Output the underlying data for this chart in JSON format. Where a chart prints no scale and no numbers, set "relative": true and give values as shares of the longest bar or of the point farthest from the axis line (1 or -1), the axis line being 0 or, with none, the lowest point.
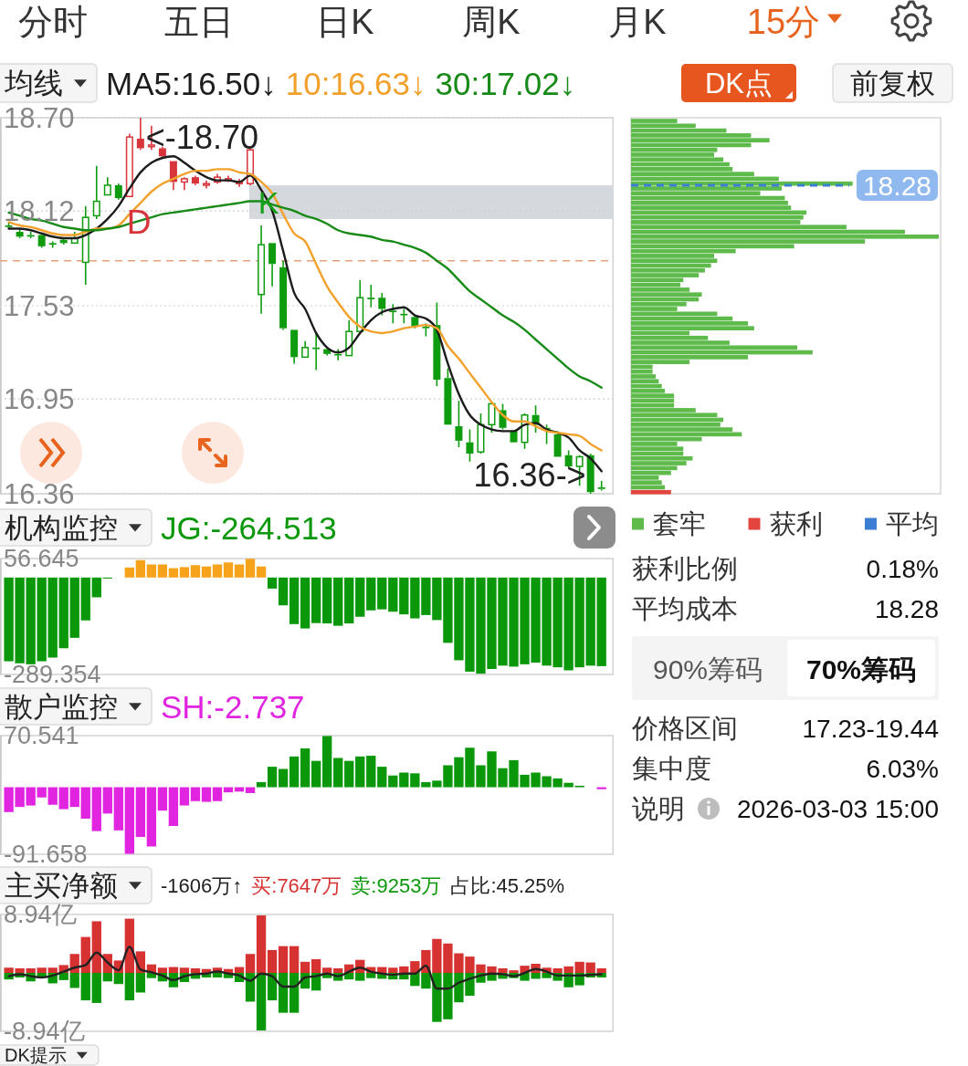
{
  "chart_data": [
    {
      "type": "other",
      "annotations": [
        "分时",
        "五日",
        "日K",
        "周K",
        "月K",
        "15分"
      ]
    },
    {
      "type": "candlestick",
      "legend_title": "均线",
      "legend": "top",
      "tick_labels": "y",
      "grid": "y",
      "categories": [
        null,
        null,
        null,
        null,
        null,
        null,
        null,
        null,
        null,
        null,
        null,
        null,
        null,
        null,
        null,
        null,
        null,
        null,
        null,
        null,
        null,
        null,
        null,
        null,
        null,
        null,
        null,
        null,
        null,
        null,
        null,
        null,
        null,
        null,
        null,
        null,
        null,
        null,
        null,
        null,
        null,
        null,
        null,
        null,
        null,
        null,
        null,
        null,
        null,
        null,
        null,
        null,
        null,
        null,
        null
      ],
      "ohlc": [
        [
          18.03,
          18.05,
          18.01,
          18.02
        ],
        [
          17.99,
          18.01,
          17.95,
          17.96
        ],
        [
          17.97,
          17.99,
          17.95,
          17.96
        ],
        [
          17.97,
          17.98,
          17.89,
          17.9
        ],
        [
          17.92,
          17.93,
          17.89,
          17.91
        ],
        [
          17.94,
          17.95,
          17.91,
          17.92
        ],
        [
          17.92,
          17.99,
          17.92,
          17.95
        ],
        [
          17.8,
          18.15,
          17.66,
          18.08
        ],
        [
          18.09,
          18.4,
          18.07,
          18.18
        ],
        [
          18.22,
          18.33,
          18.22,
          18.28
        ],
        [
          18.28,
          18.29,
          18.19,
          18.2
        ],
        [
          18.21,
          18.6,
          18.21,
          18.58
        ],
        [
          18.57,
          18.7,
          18.5,
          18.51
        ],
        [
          18.52,
          18.65,
          18.5,
          18.53
        ],
        [
          18.51,
          18.52,
          18.45,
          18.46
        ],
        [
          18.43,
          18.43,
          18.25,
          18.3
        ],
        [
          18.3,
          18.33,
          18.25,
          18.32
        ],
        [
          18.33,
          18.34,
          18.28,
          18.29
        ],
        [
          18.28,
          18.31,
          18.26,
          18.29
        ],
        [
          18.3,
          18.35,
          18.29,
          18.33
        ],
        [
          18.31,
          18.34,
          18.3,
          18.32
        ],
        [
          18.29,
          18.32,
          18.27,
          18.3
        ],
        [
          18.29,
          18.51,
          18.28,
          18.5
        ],
        [
          17.6,
          18.03,
          17.48,
          17.91
        ],
        [
          17.92,
          17.92,
          17.65,
          17.79
        ],
        [
          17.77,
          17.81,
          17.38,
          17.39
        ],
        [
          17.38,
          17.38,
          17.17,
          17.21
        ],
        [
          17.21,
          17.31,
          17.21,
          17.27
        ],
        [
          17.27,
          17.36,
          17.13,
          17.26
        ],
        [
          17.26,
          17.27,
          17.22,
          17.23
        ],
        [
          17.23,
          17.26,
          17.19,
          17.22
        ],
        [
          17.22,
          17.44,
          17.22,
          17.37
        ],
        [
          17.37,
          17.69,
          17.37,
          17.58
        ],
        [
          17.58,
          17.66,
          17.52,
          17.57
        ],
        [
          17.58,
          17.61,
          17.47,
          17.51
        ],
        [
          17.5,
          17.54,
          17.42,
          17.49
        ],
        [
          17.48,
          17.51,
          17.42,
          17.47
        ],
        [
          17.46,
          17.47,
          17.39,
          17.4
        ],
        [
          17.4,
          17.42,
          17.34,
          17.39
        ],
        [
          17.41,
          17.55,
          17.03,
          17.07
        ],
        [
          17.08,
          17.14,
          16.79,
          16.79
        ],
        [
          16.78,
          16.94,
          16.65,
          16.69
        ],
        [
          16.68,
          16.76,
          16.56,
          16.61
        ],
        [
          16.62,
          16.86,
          16.61,
          16.79
        ],
        [
          16.79,
          16.93,
          16.74,
          16.92
        ],
        [
          16.88,
          16.92,
          16.76,
          16.77
        ],
        [
          16.75,
          16.75,
          16.68,
          16.68
        ],
        [
          16.68,
          16.86,
          16.64,
          16.85
        ],
        [
          16.85,
          16.91,
          16.74,
          16.79
        ],
        [
          16.77,
          16.79,
          16.67,
          16.76
        ],
        [
          16.73,
          16.75,
          16.59,
          16.59
        ],
        [
          16.6,
          16.63,
          16.52,
          16.53
        ],
        [
          16.53,
          16.6,
          16.41,
          16.59
        ],
        [
          16.6,
          16.61,
          16.36,
          16.37
        ],
        [
          16.4,
          16.44,
          16.38,
          16.39
        ]
      ],
      "colors": [
        "#0e9c0e",
        "#0e9c0e",
        "#0e9c0e",
        "#0e9c0e",
        "#0e9c0e",
        "#0e9c0e",
        "#0e9c0e",
        "#0e9c0e",
        "#0e9c0e",
        "#0e9c0e",
        "#0e9c0e",
        "#d8343c",
        "#d8343c",
        "#d8343c",
        "#d8343c",
        "#d8343c",
        "#d8343c",
        "#d8343c",
        "#d8343c",
        "#d8343c",
        "#d8343c",
        "#d8343c",
        "#d8343c",
        "#0e9c0e",
        "#0e9c0e",
        "#0e9c0e",
        "#0e9c0e",
        "#0e9c0e",
        "#0e9c0e",
        "#0e9c0e",
        "#0e9c0e",
        "#0e9c0e",
        "#0e9c0e",
        "#0e9c0e",
        "#0e9c0e",
        "#0e9c0e",
        "#0e9c0e",
        "#0e9c0e",
        "#0e9c0e",
        "#0e9c0e",
        "#0e9c0e",
        "#0e9c0e",
        "#0e9c0e",
        "#0e9c0e",
        "#0e9c0e",
        "#0e9c0e",
        "#0e9c0e",
        "#0e9c0e",
        "#0e9c0e",
        "#0e9c0e",
        "#0e9c0e",
        "#0e9c0e",
        "#0e9c0e",
        "#0e9c0e",
        "#0e9c0e"
      ],
      "series": [
        {
          "name": "MA5:16.50↓",
          "type": "line",
          "color": "#1c1c1c",
          "values": [
            18.01,
            18.01,
            18.0,
            17.98,
            17.96,
            17.95,
            17.95,
            17.97,
            18.01,
            18.07,
            18.15,
            18.26,
            18.36,
            18.42,
            18.45,
            18.46,
            18.42,
            18.37,
            18.33,
            18.31,
            18.31,
            18.3,
            18.34,
            18.25,
            18.12,
            17.87,
            17.61,
            17.51,
            17.36,
            17.27,
            17.24,
            17.27,
            17.36,
            17.44,
            17.49,
            17.51,
            17.52,
            17.47,
            17.45,
            17.38,
            17.17,
            16.98,
            16.85,
            16.79,
            16.76,
            16.75,
            16.75,
            16.79,
            16.8,
            16.76,
            16.74,
            16.71,
            16.63,
            16.58,
            16.5
          ]
        },
        {
          "name": "10:16.63↓",
          "type": "line",
          "color": "#f2a12c",
          "values": [
            18.05,
            18.03,
            18.02,
            18.0,
            17.98,
            17.97,
            17.97,
            17.99,
            18.01,
            18.01,
            18.03,
            18.1,
            18.17,
            18.24,
            18.29,
            18.32,
            18.35,
            18.37,
            18.37,
            18.38,
            18.38,
            18.36,
            18.35,
            18.3,
            18.23,
            18.1,
            17.98,
            17.93,
            17.79,
            17.65,
            17.55,
            17.46,
            17.4,
            17.37,
            17.36,
            17.37,
            17.39,
            17.4,
            17.41,
            17.39,
            17.28,
            17.2,
            17.11,
            17.02,
            16.93,
            16.85,
            16.81,
            16.81,
            16.78,
            16.75,
            16.74,
            16.73,
            16.72,
            16.67,
            16.63
          ]
        },
        {
          "name": "30:17.02↓",
          "type": "line",
          "color": "#188a18",
          "values": [
            18.11,
            18.09,
            18.07,
            18.06,
            18.04,
            18.02,
            18.01,
            18.0,
            18.0,
            18.01,
            18.02,
            18.04,
            18.06,
            18.08,
            18.1,
            18.11,
            18.12,
            18.13,
            18.14,
            18.15,
            18.16,
            18.17,
            18.18,
            18.18,
            18.16,
            18.14,
            18.12,
            18.09,
            18.07,
            18.04,
            18.0,
            17.98,
            17.97,
            17.96,
            17.94,
            17.93,
            17.91,
            17.89,
            17.86,
            17.81,
            17.76,
            17.69,
            17.62,
            17.57,
            17.52,
            17.47,
            17.43,
            17.38,
            17.32,
            17.26,
            17.2,
            17.14,
            17.09,
            17.06,
            17.02
          ]
        }
      ],
      "ylim": [
        16.36,
        18.7
      ],
      "yticks": [
        {
          "value": 18.7,
          "label": "18.70"
        },
        18.12,
        17.53,
        16.95,
        16.36
      ],
      "ref_lines": [
        {
          "axis": "y",
          "value": 17.81,
          "color": "#e4a27a",
          "line_style": "dashed"
        }
      ],
      "bands": [
        {
          "axis": "y",
          "from": 18.07,
          "to": 18.28,
          "color": "#d5d8dd"
        }
      ],
      "annotations": [
        "DK点",
        "前复权",
        "<-18.70",
        "16.36->",
        "D",
        "K"
      ]
    },
    {
      "type": "bar",
      "orientation": "horizontal",
      "relative": true,
      "ylim": [
        16.36,
        18.7
      ],
      "tick_labels": false,
      "legend": "bottom",
      "x": [
        18.68,
        18.65,
        18.62,
        18.59,
        18.56,
        18.53,
        18.5,
        18.47,
        18.44,
        18.41,
        18.38,
        18.35,
        18.32,
        18.29,
        18.26,
        18.23,
        18.2,
        18.17,
        18.14,
        18.11,
        18.08,
        18.05,
        18.02,
        17.99,
        17.96,
        17.93,
        17.9,
        17.87,
        17.84,
        17.81,
        17.78,
        17.75,
        17.72,
        17.69,
        17.66,
        17.63,
        17.6,
        17.57,
        17.54,
        17.51,
        17.48,
        17.45,
        17.42,
        17.39,
        17.36,
        17.33,
        17.3,
        17.27,
        17.24,
        17.21,
        17.18,
        17.15,
        17.12,
        17.09,
        17.06,
        17.03,
        17.0,
        16.97,
        16.94,
        16.91,
        16.88,
        16.85,
        16.82,
        16.79,
        16.76,
        16.73,
        16.7,
        16.67,
        16.64,
        16.61,
        16.58,
        16.55,
        16.52,
        16.49,
        16.46,
        16.43,
        16.4,
        16.37
      ],
      "series": [
        {
          "name": "套牢",
          "color": "#5dba4b",
          "values": [
            0.15,
            0.21,
            0.31,
            0.39,
            0.45,
            0.39,
            0.28,
            0.27,
            0.3,
            0.32,
            0.33,
            0.4,
            0.48,
            0.72,
            0.49,
            0.42,
            0.5,
            0.51,
            0.52,
            0.57,
            0.56,
            0.55,
            0.7,
            0.89,
            1,
            0.76,
            0.53,
            0.34,
            0.27,
            0.28,
            0.26,
            0.24,
            0.22,
            0.17,
            0.16,
            0.19,
            0.23,
            0.22,
            0.18,
            0.15,
            0.28,
            0.33,
            0.38,
            0.4,
            0.19,
            0.25,
            0.32,
            0.54,
            0.59,
            0.38,
            0.19,
            0.07,
            0.07,
            0.08,
            0.09,
            0.1,
            0.11,
            0.14,
            0.14,
            0.14,
            0.21,
            0.28,
            0.3,
            0.29,
            0.33,
            0.36,
            0.23,
            0.15,
            0.17,
            0.17,
            0.2,
            0.18,
            0.15,
            0.13,
            0.09,
            0.1,
            0.11,
            null
          ]
        },
        {
          "name": "获利",
          "color": "#e3453e",
          "values": [
            null,
            null,
            null,
            null,
            null,
            null,
            null,
            null,
            null,
            null,
            null,
            null,
            null,
            null,
            null,
            null,
            null,
            null,
            null,
            null,
            null,
            null,
            null,
            null,
            null,
            null,
            null,
            null,
            null,
            null,
            null,
            null,
            null,
            null,
            null,
            null,
            null,
            null,
            null,
            null,
            null,
            null,
            null,
            null,
            null,
            null,
            null,
            null,
            null,
            null,
            null,
            null,
            null,
            null,
            null,
            null,
            null,
            null,
            null,
            null,
            null,
            null,
            null,
            null,
            null,
            null,
            null,
            null,
            null,
            null,
            null,
            null,
            null,
            null,
            null,
            null,
            null,
            0.13
          ]
        }
      ],
      "ref_lines": [
        {
          "axis": "y",
          "value": 18.28,
          "label": "平均",
          "color": "#3b7fd4",
          "line_style": "dashed"
        }
      ],
      "annotations": [
        "18.28"
      ]
    },
    {
      "type": "other",
      "annotations": [
        "获利比例",
        "0.18%",
        "平均成本",
        "18.28",
        "90%筹码",
        "70%筹码",
        "价格区间",
        "17.23-19.44",
        "集中度",
        "6.03%",
        "说明",
        "2026-03-03 15:00"
      ]
    },
    {
      "type": "bar",
      "legend_title": "机构监控",
      "legend": "top left",
      "tick_labels": "y",
      "categories": [
        null,
        null,
        null,
        null,
        null,
        null,
        null,
        null,
        null,
        null,
        null,
        null,
        null,
        null,
        null,
        null,
        null,
        null,
        null,
        null,
        null,
        null,
        null,
        null,
        null,
        null,
        null,
        null,
        null,
        null,
        null,
        null,
        null,
        null,
        null,
        null,
        null,
        null,
        null,
        null,
        null,
        null,
        null,
        null,
        null,
        null,
        null,
        null,
        null,
        null,
        null,
        null,
        null,
        null,
        null
      ],
      "ylim": [
        -289.354,
        56.645
      ],
      "yticks": [
        56.645,
        -289.354
      ],
      "series": [
        {
          "name": "JG:-264.513",
          "color": "#0a980a",
          "colors": [
            "#0a980a",
            "#0a980a",
            "#0a980a",
            "#0a980a",
            "#0a980a",
            "#0a980a",
            "#0a980a",
            "#0a980a",
            "#0a980a",
            "#0a980a",
            null,
            "#f7a21b",
            "#f7a21b",
            "#f7a21b",
            "#f7a21b",
            "#f7a21b",
            "#f7a21b",
            "#f7a21b",
            "#f7a21b",
            "#f7a21b",
            "#f7a21b",
            "#f7a21b",
            "#f7a21b",
            "#f7a21b",
            "#0a980a",
            "#0a980a",
            "#0a980a",
            "#0a980a",
            "#0a980a",
            "#0a980a",
            "#0a980a",
            "#0a980a",
            "#0a980a",
            "#0a980a",
            "#0a980a",
            "#0a980a",
            "#0a980a",
            "#0a980a",
            "#0a980a",
            "#0a980a",
            "#0a980a",
            "#0a980a",
            "#0a980a",
            "#0a980a",
            "#0a980a",
            "#0a980a",
            "#0a980a",
            "#0a980a",
            "#0a980a",
            "#0a980a",
            "#0a980a",
            "#0a980a",
            "#0a980a",
            "#0a980a",
            "#0a980a"
          ],
          "values": [
            -250,
            -256,
            -259,
            -250,
            -239,
            -211,
            -180,
            -128,
            -59,
            -3,
            null,
            30,
            52,
            39,
            39,
            28,
            31,
            37,
            33,
            39,
            45,
            39,
            56,
            33,
            -33,
            -83,
            -139,
            -152,
            -136,
            -137,
            -144,
            -137,
            -117,
            -98,
            -95,
            -102,
            -110,
            -122,
            -112,
            -127,
            -195,
            -247,
            -281,
            -287,
            -273,
            -263,
            -266,
            -259,
            -254,
            -263,
            -268,
            -277,
            -268,
            -263,
            -264.513
          ]
        }
      ]
    },
    {
      "type": "bar",
      "legend_title": "散户监控",
      "legend": "top left",
      "tick_labels": "y",
      "categories": [
        null,
        null,
        null,
        null,
        null,
        null,
        null,
        null,
        null,
        null,
        null,
        null,
        null,
        null,
        null,
        null,
        null,
        null,
        null,
        null,
        null,
        null,
        null,
        null,
        null,
        null,
        null,
        null,
        null,
        null,
        null,
        null,
        null,
        null,
        null,
        null,
        null,
        null,
        null,
        null,
        null,
        null,
        null,
        null,
        null,
        null,
        null,
        null,
        null,
        null,
        null,
        null,
        null,
        null,
        null
      ],
      "ylim": [
        -91.658,
        70.541
      ],
      "yticks": [
        70.541,
        -91.658
      ],
      "series": [
        {
          "name": "SH:-2.737",
          "color": "#e024e0",
          "colors": [
            "#e024e0",
            "#e024e0",
            "#e024e0",
            "#e024e0",
            "#e024e0",
            "#e024e0",
            "#e024e0",
            "#e024e0",
            "#e024e0",
            "#e024e0",
            "#e024e0",
            "#e024e0",
            "#e024e0",
            "#e024e0",
            "#e024e0",
            "#e024e0",
            "#e024e0",
            "#e024e0",
            "#e024e0",
            "#e024e0",
            "#e024e0",
            "#e024e0",
            "#e024e0",
            "#0a980a",
            "#0a980a",
            "#0a980a",
            "#0a980a",
            "#0a980a",
            "#0a980a",
            "#0a980a",
            "#0a980a",
            "#0a980a",
            "#0a980a",
            "#0a980a",
            "#0a980a",
            "#0a980a",
            "#0a980a",
            "#0a980a",
            "#0a980a",
            "#0a980a",
            "#0a980a",
            "#0a980a",
            "#0a980a",
            "#0a980a",
            "#0a980a",
            "#0a980a",
            "#0a980a",
            "#0a980a",
            "#0a980a",
            "#0a980a",
            "#0a980a",
            "#0a980a",
            "#0a980a",
            null,
            "#e024e0"
          ],
          "values": [
            -34,
            -27,
            -25,
            -14,
            -24,
            -30,
            -27,
            -43,
            -60,
            -36,
            -59,
            -91,
            -68,
            -81,
            -32,
            -53,
            -25,
            -19,
            -20,
            -19,
            -7,
            -6,
            -8,
            7,
            28,
            25,
            42,
            53,
            36,
            70,
            40,
            36,
            42,
            43,
            28,
            16,
            20,
            19,
            7,
            9,
            30,
            41,
            54,
            30,
            49,
            26,
            37,
            17,
            20,
            15,
            12,
            6,
            2,
            null,
            -2.737
          ]
        }
      ]
    },
    {
      "type": "bar",
      "legend_title": "主买净额",
      "legend": "top left",
      "tick_labels": "y",
      "stacked": true,
      "categories": [
        null,
        null,
        null,
        null,
        null,
        null,
        null,
        null,
        null,
        null,
        null,
        null,
        null,
        null,
        null,
        null,
        null,
        null,
        null,
        null,
        null,
        null,
        null,
        null,
        null,
        null,
        null,
        null,
        null,
        null,
        null,
        null,
        null,
        null,
        null,
        null,
        null,
        null,
        null,
        null,
        null,
        null,
        null,
        null,
        null,
        null,
        null,
        null,
        null,
        null,
        null,
        null,
        null,
        null,
        null
      ],
      "ylim": [
        -8.94,
        8.94
      ],
      "yticks": [
        {
          "value": 8.94,
          "label": "8.94亿"
        },
        {
          "value": -8.94,
          "label": "-8.94亿"
        }
      ],
      "series": [
        {
          "name": "-1606万↑",
          "type": "line",
          "color": "#222222",
          "values": [
            -0.5,
            -0.2,
            -0.5,
            -0.7,
            -0.4,
            0.2,
            0.8,
            1.2,
            3.1,
            1.6,
            0.4,
            4.0,
            0.5,
            0.1,
            -0.4,
            -1.1,
            -0.5,
            -0.2,
            -0.1,
            0.2,
            -0.1,
            -0.4,
            -1.2,
            -0.1,
            -0.5,
            -2.1,
            -2.1,
            -0.7,
            -0.5,
            -0.1,
            -0.5,
            0.2,
            0.8,
            0.2,
            -0.1,
            -0.3,
            -0.1,
            -0.1,
            1.1,
            -2.4,
            -2.4,
            -1.5,
            -0.9,
            -0.4,
            -0.1,
            -0.2,
            -0.5,
            0.0,
            0.6,
            0.2,
            -0.4,
            -0.4,
            -0.4,
            -0.3,
            -0.2
          ]
        },
        {
          "name": "买:7647万",
          "color": "#d63232",
          "values": [
            0.8,
            0.7,
            0.7,
            0.8,
            0.8,
            1.2,
            2.9,
            5.5,
            7.9,
            2.9,
            1.9,
            8.3,
            3.3,
            1.3,
            0.8,
            0.9,
            0.8,
            0.7,
            0.6,
            0.8,
            0.6,
            0.9,
            2.9,
            8.8,
            3.5,
            4.1,
            4.1,
            1.7,
            2.1,
            0.8,
            0.7,
            1.3,
            2.0,
            0.9,
            0.9,
            0.8,
            1.0,
            1.8,
            3.5,
            5.2,
            4.5,
            3.0,
            2.5,
            1.3,
            1.0,
            0.7,
            0.4,
            1.1,
            1.4,
            0.8,
            0.7,
            1.0,
            1.7,
            1.6,
            0.7
          ]
        },
        {
          "name": "卖:9253万",
          "color": "#0a980a",
          "values": [
            -1.0,
            -0.7,
            -1.3,
            -0.7,
            -1.6,
            -1.1,
            -2.3,
            -4.2,
            -4.6,
            -1.3,
            -1.7,
            -4.2,
            -3.0,
            -0.8,
            -1.3,
            -2.2,
            -1.4,
            -0.9,
            -0.7,
            -0.7,
            -0.8,
            -1.4,
            -4.4,
            -8.8,
            -4.2,
            -6.1,
            -6.1,
            -2.4,
            -2.7,
            -0.8,
            -1.2,
            -1.0,
            -1.2,
            -0.8,
            -0.9,
            -1.0,
            -1.0,
            -2.0,
            -2.4,
            -7.5,
            -7.1,
            -4.5,
            -3.5,
            -1.5,
            -1.2,
            -0.9,
            -0.8,
            -1.2,
            -0.9,
            -0.8,
            -1.2,
            -2.2,
            -1.9,
            -0.7,
            -0.7
          ]
        }
      ],
      "annotations": [
        "占比:45.25%"
      ]
    },
    {
      "type": "other",
      "title": "DK提示"
    }
  ]
}
